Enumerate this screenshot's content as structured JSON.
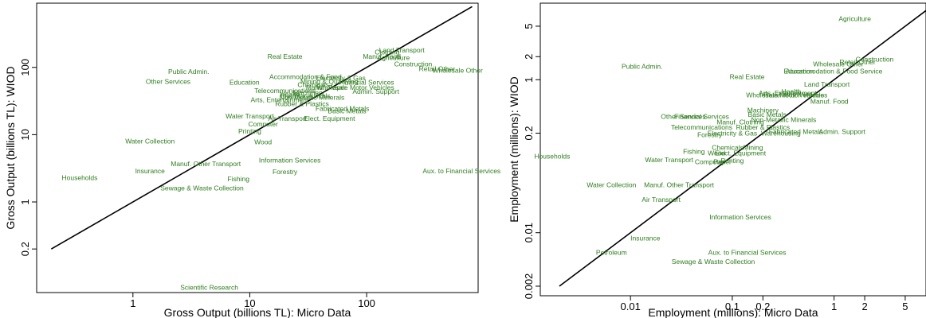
{
  "chart_data": [
    {
      "type": "scatter",
      "xlabel": "Gross Output (billions TL): Micro Data",
      "ylabel": "Gross Output (billions TL): WIOD",
      "xscale": "log",
      "yscale": "log",
      "xlim": [
        0.15,
        900
      ],
      "ylim": [
        0.045,
        900
      ],
      "xticks": [
        {
          "v": 1,
          "label": "1"
        },
        {
          "v": 10,
          "label": "10"
        },
        {
          "v": 100,
          "label": "100"
        }
      ],
      "yticks": [
        {
          "v": 0.2,
          "label": "0.2"
        },
        {
          "v": 1,
          "label": "1"
        },
        {
          "v": 10,
          "label": "10"
        },
        {
          "v": 100,
          "label": "100"
        }
      ],
      "diagonal": [
        0.2,
        800
      ],
      "points": [
        {
          "label": "Scientific Research",
          "x": 4.5,
          "y": 0.054
        },
        {
          "label": "Households",
          "x": 0.35,
          "y": 2.3
        },
        {
          "label": "Insurance",
          "x": 1.4,
          "y": 2.9
        },
        {
          "label": "Water Collection",
          "x": 1.4,
          "y": 8.0
        },
        {
          "label": "Sewage & Waste Collection",
          "x": 3.9,
          "y": 1.6
        },
        {
          "label": "Fishing",
          "x": 8.0,
          "y": 2.2
        },
        {
          "label": "Manuf. Other Transport",
          "x": 4.2,
          "y": 3.7
        },
        {
          "label": "Forestry",
          "x": 20,
          "y": 2.8
        },
        {
          "label": "Information Services",
          "x": 22,
          "y": 4.2
        },
        {
          "label": "Aux. to Financial Services",
          "x": 650,
          "y": 2.9
        },
        {
          "label": "Wood",
          "x": 13,
          "y": 7.8
        },
        {
          "label": "Printing",
          "x": 10,
          "y": 11.3
        },
        {
          "label": "Water Transport",
          "x": 10,
          "y": 18.8
        },
        {
          "label": "Computer",
          "x": 13,
          "y": 14.3
        },
        {
          "label": "Air Transport",
          "x": 21,
          "y": 17.3
        },
        {
          "label": "Elect. Equipment",
          "x": 48,
          "y": 17.5
        },
        {
          "label": "Fabricated Metals",
          "x": 62,
          "y": 24.5
        },
        {
          "label": "Basic Metals",
          "x": 68,
          "y": 22.5
        },
        {
          "label": "Arts, Entertainment",
          "x": 18,
          "y": 33
        },
        {
          "label": "Rubber & Plastics",
          "x": 28,
          "y": 29
        },
        {
          "label": "Non-Metallic Minerals",
          "x": 34,
          "y": 36
        },
        {
          "label": "Telecommunications",
          "x": 20,
          "y": 45
        },
        {
          "label": "Health",
          "x": 22,
          "y": 40
        },
        {
          "label": "Pharmaceuticals",
          "x": 30,
          "y": 38
        },
        {
          "label": "Machinery",
          "x": 32,
          "y": 42
        },
        {
          "label": "Chemicals",
          "x": 35,
          "y": 55
        },
        {
          "label": "Electricity & Gas",
          "x": 60,
          "y": 70
        },
        {
          "label": "Accommodation & Food",
          "x": 30,
          "y": 73
        },
        {
          "label": "Manuf. Paper",
          "x": 45,
          "y": 50
        },
        {
          "label": "Admin. Support",
          "x": 120,
          "y": 44
        },
        {
          "label": "Wholesale Motor Vehicles",
          "x": 80,
          "y": 50
        },
        {
          "label": "Financial Services",
          "x": 100,
          "y": 60
        },
        {
          "label": "Mining & Quarrying",
          "x": 48,
          "y": 62
        },
        {
          "label": "Public Admin.",
          "x": 3.0,
          "y": 87
        },
        {
          "label": "Other Services",
          "x": 2.0,
          "y": 62
        },
        {
          "label": "Education",
          "x": 9.0,
          "y": 60
        },
        {
          "label": "Real Estate",
          "x": 20,
          "y": 145
        },
        {
          "label": "Land Transport",
          "x": 200,
          "y": 180
        },
        {
          "label": "Clothing",
          "x": 150,
          "y": 170
        },
        {
          "label": "Manuf. Food",
          "x": 135,
          "y": 145
        },
        {
          "label": "Agriculture",
          "x": 170,
          "y": 140
        },
        {
          "label": "Construction",
          "x": 250,
          "y": 112
        },
        {
          "label": "Retail Other",
          "x": 400,
          "y": 95
        },
        {
          "label": "Wholesale Other",
          "x": 600,
          "y": 90
        }
      ]
    },
    {
      "type": "scatter",
      "xlabel": "Employment (millions): Micro Data",
      "ylabel": "Employment (millions): WIOD",
      "xscale": "log",
      "yscale": "log",
      "xlim": [
        0.0013,
        8
      ],
      "ylim": [
        0.0015,
        10
      ],
      "xticks": [
        {
          "v": 0.01,
          "label": "0.01"
        },
        {
          "v": 0.1,
          "label": "0.1"
        },
        {
          "v": 0.2,
          "label": "0.2"
        },
        {
          "v": 1,
          "label": "1"
        },
        {
          "v": 2,
          "label": "2"
        },
        {
          "v": 5,
          "label": "5"
        }
      ],
      "yticks": [
        {
          "v": 0.002,
          "label": "0.002"
        },
        {
          "v": 0.01,
          "label": "0.01"
        },
        {
          "v": 0.2,
          "label": "0.2"
        },
        {
          "v": 1,
          "label": "1"
        },
        {
          "v": 2,
          "label": "2"
        },
        {
          "v": 5,
          "label": "5"
        }
      ],
      "diagonal": [
        0.002,
        8
      ],
      "points": [
        {
          "label": "Agriculture",
          "x": 1.6,
          "y": 6.3
        },
        {
          "label": "Public Admin.",
          "x": 0.013,
          "y": 1.5
        },
        {
          "label": "Real Estate",
          "x": 0.14,
          "y": 1.1
        },
        {
          "label": "Education",
          "x": 0.45,
          "y": 1.3
        },
        {
          "label": "Accommodation & Food Service",
          "x": 1.0,
          "y": 1.3
        },
        {
          "label": "Wholesale Other",
          "x": 1.1,
          "y": 1.6
        },
        {
          "label": "Retail Other",
          "x": 1.7,
          "y": 1.7
        },
        {
          "label": "Construction",
          "x": 2.5,
          "y": 1.85
        },
        {
          "label": "Land Transport",
          "x": 0.85,
          "y": 0.87
        },
        {
          "label": "Health",
          "x": 0.38,
          "y": 0.7
        },
        {
          "label": "Arts, Entertainment",
          "x": 0.35,
          "y": 0.67
        },
        {
          "label": "Wholesale Motor Vehicles",
          "x": 0.33,
          "y": 0.63
        },
        {
          "label": "Retail Motor Vehicles",
          "x": 0.42,
          "y": 0.63
        },
        {
          "label": "Manuf. Food",
          "x": 0.9,
          "y": 0.52
        },
        {
          "label": "Machinery",
          "x": 0.2,
          "y": 0.4
        },
        {
          "label": "Basic Metals",
          "x": 0.22,
          "y": 0.35
        },
        {
          "label": "Other Services",
          "x": 0.033,
          "y": 0.33
        },
        {
          "label": "Financial Services",
          "x": 0.05,
          "y": 0.33
        },
        {
          "label": "Non-Metallic Minerals",
          "x": 0.32,
          "y": 0.3
        },
        {
          "label": "Manuf. Clothing",
          "x": 0.12,
          "y": 0.28
        },
        {
          "label": "Rubber & Plastics",
          "x": 0.2,
          "y": 0.24
        },
        {
          "label": "Telecommunications",
          "x": 0.05,
          "y": 0.24
        },
        {
          "label": "Fabricated Metals",
          "x": 0.42,
          "y": 0.21
        },
        {
          "label": "Admin. Support",
          "x": 1.2,
          "y": 0.21
        },
        {
          "label": "Warehousing",
          "x": 0.3,
          "y": 0.2
        },
        {
          "label": "Electricity & Gas",
          "x": 0.1,
          "y": 0.2
        },
        {
          "label": "Forestry",
          "x": 0.06,
          "y": 0.19
        },
        {
          "label": "Chemicals",
          "x": 0.09,
          "y": 0.13
        },
        {
          "label": "Mining",
          "x": 0.16,
          "y": 0.13
        },
        {
          "label": "Fishing",
          "x": 0.042,
          "y": 0.115
        },
        {
          "label": "Wood",
          "x": 0.07,
          "y": 0.11
        },
        {
          "label": "Elect. Equipment",
          "x": 0.12,
          "y": 0.11
        },
        {
          "label": "Water Transport",
          "x": 0.024,
          "y": 0.09
        },
        {
          "label": "Printing",
          "x": 0.1,
          "y": 0.088
        },
        {
          "label": "Computer",
          "x": 0.06,
          "y": 0.085
        },
        {
          "label": "Paper",
          "x": 0.08,
          "y": 0.085
        },
        {
          "label": "Households",
          "x": 0.0017,
          "y": 0.1
        },
        {
          "label": "Water Collection",
          "x": 0.0065,
          "y": 0.042
        },
        {
          "label": "Manuf. Other Transport",
          "x": 0.03,
          "y": 0.042
        },
        {
          "label": "Air Transport",
          "x": 0.02,
          "y": 0.027
        },
        {
          "label": "Information Services",
          "x": 0.12,
          "y": 0.016
        },
        {
          "label": "Insurance",
          "x": 0.014,
          "y": 0.0085
        },
        {
          "label": "Petroleum",
          "x": 0.0065,
          "y": 0.0055
        },
        {
          "label": "Aux. to Financial Services",
          "x": 0.14,
          "y": 0.0055
        },
        {
          "label": "Sewage & Waste Collection",
          "x": 0.065,
          "y": 0.0042
        }
      ]
    }
  ]
}
